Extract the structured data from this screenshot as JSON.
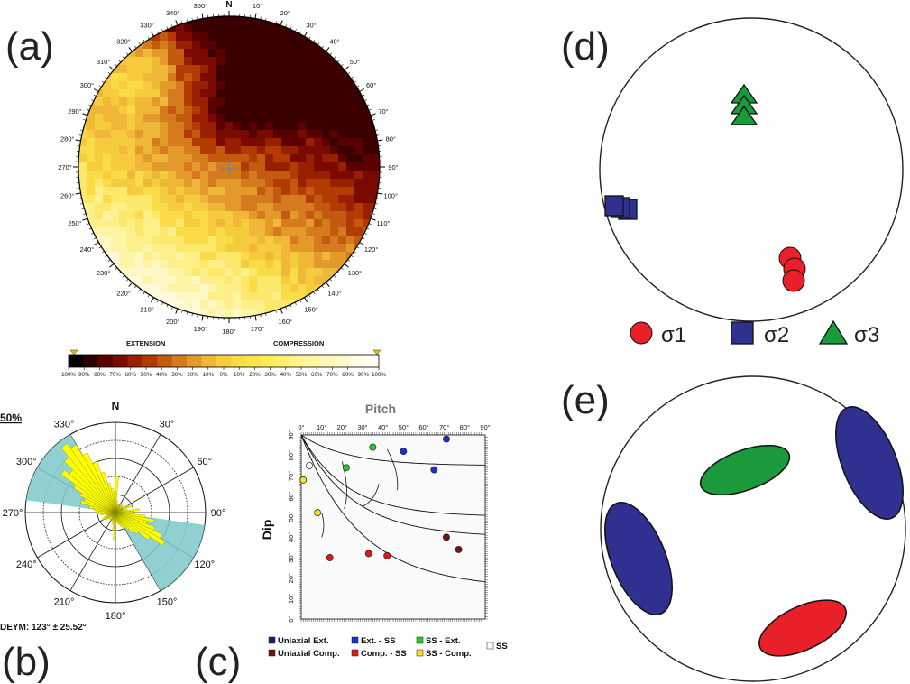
{
  "panels": {
    "a": "(a)",
    "b": "(b)",
    "c": "(c)",
    "d": "(d)",
    "e": "(e)"
  },
  "panel_a": {
    "north_label": "N",
    "bearings": [
      "10°",
      "20°",
      "30°",
      "40°",
      "50°",
      "60°",
      "70°",
      "80°",
      "90°",
      "100°",
      "110°",
      "120°",
      "130°",
      "140°",
      "150°",
      "160°",
      "170°",
      "180°",
      "190°",
      "200°",
      "210°",
      "220°",
      "230°",
      "240°",
      "250°",
      "260°",
      "270°",
      "280°",
      "290°",
      "300°",
      "310°",
      "320°",
      "330°",
      "340°",
      "350°"
    ],
    "colorbar": {
      "left_title": "EXTENSION",
      "right_title": "COMPRESSION",
      "ticks": [
        "100%",
        "90%",
        "80%",
        "70%",
        "60%",
        "50%",
        "40%",
        "30%",
        "20%",
        "10%",
        "0%",
        "10%",
        "20%",
        "30%",
        "40%",
        "50%",
        "60%",
        "70%",
        "80%",
        "90%",
        "100%"
      ],
      "colors": [
        "#000000",
        "#2b0000",
        "#5a0000",
        "#7a0a00",
        "#981f00",
        "#b33a00",
        "#c45a10",
        "#d67a1e",
        "#e49a2a",
        "#f0b838",
        "#f6cc3e",
        "#fadc48",
        "#fbe44c",
        "#fcec5a",
        "#fdf070",
        "#fef488",
        "#fef6a0",
        "#fff8b6",
        "#fffacc",
        "#fffce2",
        "#fffff4"
      ]
    }
  },
  "panel_b": {
    "north_label": "N",
    "scale_label": "50%",
    "angle_labels": {
      "a30": "30°",
      "a60": "60°",
      "a90": "90°",
      "a120": "120°",
      "a150": "150°",
      "a180": "180°",
      "a210": "210°",
      "a240": "240°",
      "a270": "270°",
      "a300": "300°",
      "a330": "330°"
    },
    "footer": "DEYM: 123° ± 25.52°",
    "rose_values": [
      12,
      4,
      3,
      3,
      2,
      3,
      2,
      3,
      4,
      3,
      3,
      2,
      5,
      6,
      3,
      4,
      8,
      6,
      6,
      10,
      13,
      11,
      14,
      17,
      19,
      14,
      10,
      9,
      7,
      6,
      6,
      5,
      4,
      4,
      3,
      3,
      9,
      6,
      4,
      3,
      3,
      2,
      3,
      2,
      3,
      3,
      4,
      4,
      5,
      4,
      3,
      3,
      5,
      6,
      6,
      7,
      9,
      12,
      11,
      13,
      16,
      22,
      20,
      24,
      28,
      26,
      22,
      18,
      14,
      10,
      8,
      7
    ]
  },
  "chart_data": {
    "type": "scatter",
    "title": "Pitch",
    "xlabel": "Pitch",
    "ylabel": "Dip",
    "xlim": [
      0,
      90
    ],
    "ylim": [
      0,
      90
    ],
    "x_ticks": [
      "0°",
      "10°",
      "20°",
      "30°",
      "40°",
      "50°",
      "60°",
      "70°",
      "80°",
      "90°"
    ],
    "y_ticks": [
      "0°",
      "10°",
      "20°",
      "30°",
      "40°",
      "50°",
      "60°",
      "70°",
      "80°",
      "90°"
    ],
    "series": [
      {
        "name": "Ext. - SS",
        "color": "#1a2fd0",
        "points": [
          [
            50,
            82
          ],
          [
            71,
            88
          ],
          [
            65,
            73
          ]
        ]
      },
      {
        "name": "SS - Ext.",
        "color": "#1fd01f",
        "points": [
          [
            35,
            84
          ],
          [
            22,
            74
          ]
        ]
      },
      {
        "name": "Uniaxial Comp.",
        "color": "#7a1010",
        "points": [
          [
            71,
            40
          ],
          [
            77,
            34
          ]
        ]
      },
      {
        "name": "Comp. - SS",
        "color": "#e01818",
        "points": [
          [
            14,
            30
          ],
          [
            33,
            32
          ],
          [
            42,
            31
          ]
        ]
      },
      {
        "name": "SS - Comp.",
        "color": "#f4e020",
        "points": [
          [
            8,
            52
          ],
          [
            1,
            68
          ]
        ]
      },
      {
        "name": "SS",
        "color": "#ffffff",
        "points": [
          [
            4,
            75
          ]
        ]
      }
    ],
    "legend": [
      {
        "label": "Uniaxial Ext.",
        "color": "#1a1a7a"
      },
      {
        "label": "Ext. - SS",
        "color": "#1a2fd0"
      },
      {
        "label": "SS - Ext.",
        "color": "#1fd01f"
      },
      {
        "label": "SS",
        "color": "#ffffff"
      },
      {
        "label": "Uniaxial Comp.",
        "color": "#7a1010"
      },
      {
        "label": "Comp. - SS",
        "color": "#e01818"
      },
      {
        "label": "SS - Comp.",
        "color": "#f4e020"
      }
    ]
  },
  "panel_d": {
    "legend": [
      {
        "label": "σ1",
        "color": "#e8202a",
        "shape": "circle"
      },
      {
        "label": "σ2",
        "color": "#303090",
        "shape": "square"
      },
      {
        "label": "σ3",
        "color": "#1a9a3a",
        "shape": "triangle"
      }
    ]
  },
  "panel_e": {
    "ellipse_colors": {
      "green": "#1a9a3a",
      "blue": "#303090",
      "red": "#e8202a"
    }
  }
}
